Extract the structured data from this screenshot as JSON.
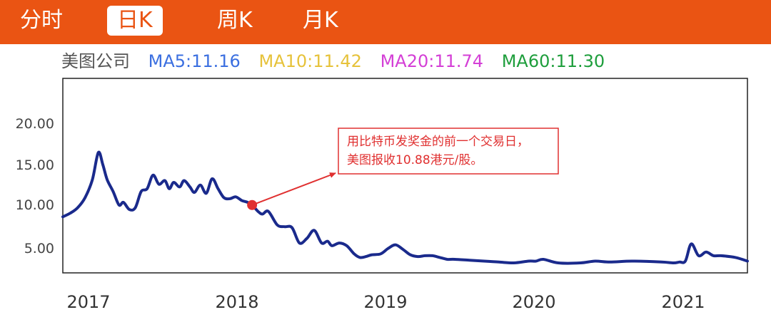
{
  "tabs": [
    {
      "label": "分时"
    },
    {
      "label": "日K"
    },
    {
      "label": "周K"
    },
    {
      "label": "月K"
    }
  ],
  "active_tab": "日K",
  "legend": {
    "stock": "美图公司",
    "ma5": "MA5:11.16",
    "ma10": "MA10:11.42",
    "ma20": "MA20:11.74",
    "ma60": "MA60:11.30"
  },
  "colors": {
    "header_bg": "#ea5413",
    "stock": "#555555",
    "ma5": "#3b6fe0",
    "ma10": "#e6c23a",
    "ma20": "#d43fd6",
    "ma60": "#1e9e3c",
    "line": "#1a2a8c",
    "annotation": "#e03030"
  },
  "annotation": {
    "line1": "用比特币发奖金的前一个交易日，",
    "line2": "美图报收10.88港元/股。",
    "point": [
      2018.13,
      10.0
    ]
  },
  "chart_data": {
    "type": "line",
    "xlabel": "",
    "ylabel": "",
    "x_ticks": [
      "2017",
      "2018",
      "2019",
      "2020",
      "2021"
    ],
    "y_ticks": [
      "20.00",
      "15.00",
      "10.00",
      "5.00"
    ],
    "xlim": [
      2016.85,
      2021.48
    ],
    "ylim": [
      2.5,
      24.0
    ],
    "grid": false,
    "series": [
      {
        "x": [
          2016.85,
          2016.9,
          2016.95,
          2017.0,
          2017.05,
          2017.09,
          2017.12,
          2017.15,
          2017.19,
          2017.23,
          2017.26,
          2017.3,
          2017.34,
          2017.38,
          2017.42,
          2017.46,
          2017.5,
          2017.54,
          2017.57,
          2017.6,
          2017.64,
          2017.67,
          2017.71,
          2017.74,
          2017.78,
          2017.82,
          2017.86,
          2017.9,
          2017.94,
          2017.98,
          2018.02,
          2018.06,
          2018.1,
          2018.13,
          2018.17,
          2018.2,
          2018.24,
          2018.3,
          2018.35,
          2018.4,
          2018.45,
          2018.5,
          2018.55,
          2018.6,
          2018.64,
          2018.67,
          2018.72,
          2018.77,
          2018.82,
          2018.86,
          2018.9,
          2018.94,
          2019.0,
          2019.05,
          2019.1,
          2019.15,
          2019.2,
          2019.25,
          2019.3,
          2019.35,
          2019.4,
          2019.45,
          2019.5,
          2019.6,
          2019.7,
          2019.8,
          2019.9,
          2020.0,
          2020.05,
          2020.1,
          2020.2,
          2020.35,
          2020.45,
          2020.55,
          2020.7,
          2020.9,
          2020.98,
          2021.02,
          2021.06,
          2021.1,
          2021.15,
          2021.2,
          2021.25,
          2021.3,
          2021.4,
          2021.48
        ],
        "y": [
          8.7,
          9.1,
          9.7,
          10.8,
          12.8,
          15.8,
          14.5,
          12.8,
          11.5,
          10.0,
          10.3,
          9.5,
          9.7,
          11.5,
          11.8,
          13.3,
          12.3,
          12.7,
          11.8,
          12.5,
          12.0,
          12.7,
          12.0,
          11.4,
          12.2,
          11.3,
          12.9,
          11.8,
          10.8,
          10.7,
          10.9,
          10.5,
          10.3,
          10.0,
          9.3,
          9.0,
          9.3,
          7.8,
          7.6,
          7.5,
          5.8,
          6.3,
          7.2,
          5.8,
          6.0,
          5.5,
          5.8,
          5.5,
          4.6,
          4.2,
          4.3,
          4.5,
          4.6,
          5.2,
          5.6,
          5.1,
          4.5,
          4.3,
          4.4,
          4.4,
          4.2,
          4.0,
          4.0,
          3.9,
          3.8,
          3.7,
          3.6,
          3.8,
          3.8,
          4.0,
          3.6,
          3.6,
          3.8,
          3.7,
          3.8,
          3.7,
          3.6,
          3.7,
          3.8,
          5.7,
          4.4,
          4.8,
          4.4,
          4.4,
          4.2,
          3.8
        ]
      }
    ]
  }
}
